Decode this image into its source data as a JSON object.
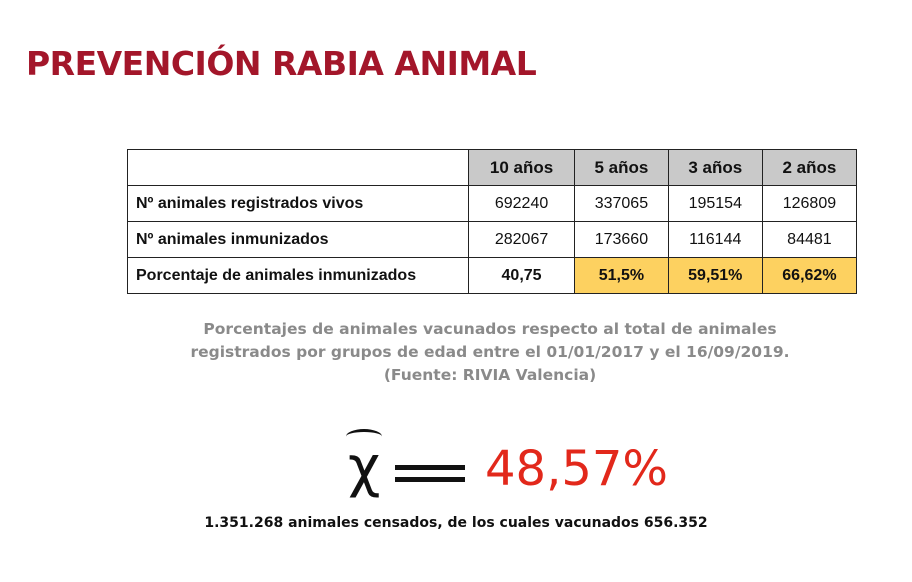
{
  "title": "PREVENCIÓN RABIA ANIMAL",
  "table": {
    "headers": [
      "10 años",
      "5 años",
      "3 años",
      "2 años"
    ],
    "rows": [
      {
        "label": "Nº animales registrados vivos",
        "values": [
          "692240",
          "337065",
          "195154",
          "126809"
        ]
      },
      {
        "label": "Nº animales inmunizados",
        "values": [
          "282067",
          "173660",
          "116144",
          "84481"
        ]
      },
      {
        "label": "Porcentaje de animales inmunizados",
        "values": [
          "40,75",
          "51,5%",
          "59,51%",
          "66,62%"
        ]
      }
    ],
    "highlight_color": "#fdd160"
  },
  "caption": {
    "line1": "Porcentajes de animales vacunados respecto al total de animales",
    "line2": "registrados por grupos de edad entre el 01/01/2017 y el 16/09/2019.",
    "line3": "(Fuente: RIVIA Valencia)"
  },
  "formula": {
    "symbol": "χ",
    "value": "48,57%"
  },
  "census": "1.351.268 animales censados, de los cuales vacunados 656.352",
  "colors": {
    "title": "#a3162a",
    "mean": "#e2281b",
    "caption": "#8a8a8a"
  }
}
